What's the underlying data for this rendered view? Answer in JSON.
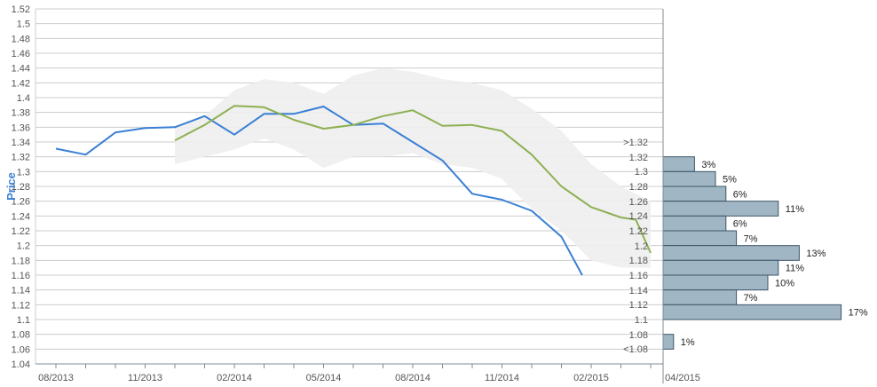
{
  "chart_data": {
    "type": "line",
    "ylabel": "Price",
    "ylim": [
      1.04,
      1.52
    ],
    "y_ticks": [
      "1.52",
      "1.5",
      "1.48",
      "1.46",
      "1.44",
      "1.42",
      "1.4",
      "1.38",
      "1.36",
      "1.34",
      "1.32",
      "1.3",
      "1.28",
      "1.26",
      "1.24",
      "1.22",
      "1.2",
      "1.18",
      "1.16",
      "1.14",
      "1.12",
      "1.1",
      "1.08",
      "1.06",
      "1.04"
    ],
    "x_ticks": [
      "08/2013",
      "11/2013",
      "02/2014",
      "05/2014",
      "08/2014",
      "11/2014",
      "02/2015",
      "04/2015"
    ],
    "grid": true,
    "band": {
      "upper": [
        [
          4.0,
          1.36
        ],
        [
          5.0,
          1.375
        ],
        [
          6.0,
          1.41
        ],
        [
          7.0,
          1.425
        ],
        [
          8.0,
          1.42
        ],
        [
          9.0,
          1.405
        ],
        [
          10.0,
          1.43
        ],
        [
          11.0,
          1.44
        ],
        [
          12.0,
          1.435
        ],
        [
          13.0,
          1.425
        ],
        [
          14.0,
          1.42
        ],
        [
          15.0,
          1.41
        ],
        [
          16.0,
          1.385
        ],
        [
          17.0,
          1.355
        ],
        [
          18.0,
          1.31
        ],
        [
          19.0,
          1.28
        ],
        [
          20.0,
          1.26
        ]
      ],
      "lower": [
        [
          20.0,
          1.17
        ],
        [
          19.0,
          1.17
        ],
        [
          18.0,
          1.18
        ],
        [
          17.0,
          1.22
        ],
        [
          16.0,
          1.25
        ],
        [
          15.0,
          1.29
        ],
        [
          14.0,
          1.305
        ],
        [
          13.0,
          1.31
        ],
        [
          12.0,
          1.325
        ],
        [
          11.0,
          1.32
        ],
        [
          10.0,
          1.32
        ],
        [
          9.0,
          1.305
        ],
        [
          8.0,
          1.33
        ],
        [
          7.0,
          1.345
        ],
        [
          6.0,
          1.33
        ],
        [
          5.0,
          1.32
        ],
        [
          4.0,
          1.31
        ]
      ]
    },
    "series": [
      {
        "color": "#3a7fd5",
        "points": [
          [
            0,
            1.331
          ],
          [
            1,
            1.323
          ],
          [
            2,
            1.353
          ],
          [
            3,
            1.359
          ],
          [
            4,
            1.36
          ],
          [
            5,
            1.375
          ],
          [
            6,
            1.35
          ],
          [
            7,
            1.378
          ],
          [
            8,
            1.378
          ],
          [
            9,
            1.388
          ],
          [
            10,
            1.363
          ],
          [
            11,
            1.365
          ],
          [
            12,
            1.34
          ],
          [
            13,
            1.315
          ],
          [
            14,
            1.27
          ],
          [
            15,
            1.262
          ],
          [
            16,
            1.247
          ],
          [
            17,
            1.212
          ],
          [
            17.7,
            1.16
          ]
        ]
      },
      {
        "color": "#8db052",
        "points": [
          [
            4,
            1.342
          ],
          [
            5,
            1.363
          ],
          [
            6,
            1.389
          ],
          [
            7,
            1.387
          ],
          [
            8,
            1.37
          ],
          [
            9,
            1.358
          ],
          [
            10,
            1.363
          ],
          [
            11,
            1.375
          ],
          [
            12,
            1.383
          ],
          [
            13,
            1.362
          ],
          [
            14,
            1.363
          ],
          [
            15,
            1.355
          ],
          [
            16,
            1.323
          ],
          [
            17,
            1.28
          ],
          [
            18,
            1.252
          ],
          [
            19,
            1.238
          ],
          [
            19.5,
            1.235
          ],
          [
            20.0,
            1.19
          ]
        ]
      }
    ],
    "distribution": {
      "labels": [
        ">1.32",
        "1.32",
        "1.3",
        "1.28",
        "1.26",
        "1.24",
        "1.22",
        "1.2",
        "1.18",
        "1.16",
        "1.14",
        "1.12",
        "1.1",
        "1.08",
        "<1.08"
      ],
      "bars": [
        {
          "lo": 1.3,
          "hi": 1.32,
          "pct": 3,
          "label": "3%"
        },
        {
          "lo": 1.28,
          "hi": 1.3,
          "pct": 5,
          "label": "5%"
        },
        {
          "lo": 1.26,
          "hi": 1.28,
          "pct": 6,
          "label": "6%"
        },
        {
          "lo": 1.24,
          "hi": 1.26,
          "pct": 11,
          "label": "11%"
        },
        {
          "lo": 1.22,
          "hi": 1.24,
          "pct": 6,
          "label": "6%"
        },
        {
          "lo": 1.2,
          "hi": 1.22,
          "pct": 7,
          "label": "7%"
        },
        {
          "lo": 1.18,
          "hi": 1.2,
          "pct": 13,
          "label": "13%"
        },
        {
          "lo": 1.16,
          "hi": 1.18,
          "pct": 11,
          "label": "11%"
        },
        {
          "lo": 1.14,
          "hi": 1.16,
          "pct": 10,
          "label": "10%"
        },
        {
          "lo": 1.12,
          "hi": 1.14,
          "pct": 7,
          "label": "7%"
        },
        {
          "lo": 1.1,
          "hi": 1.12,
          "pct": 17,
          "label": "17%"
        },
        {
          "lo": 1.06,
          "hi": 1.08,
          "pct": 1,
          "label": "1%"
        }
      ]
    },
    "colors": {
      "band": "#eeeeee",
      "bar_fill": "#a0b6c4",
      "bar_stroke": "#3d5566",
      "grid": "#cccccc",
      "axis": "#7f8c96"
    }
  }
}
